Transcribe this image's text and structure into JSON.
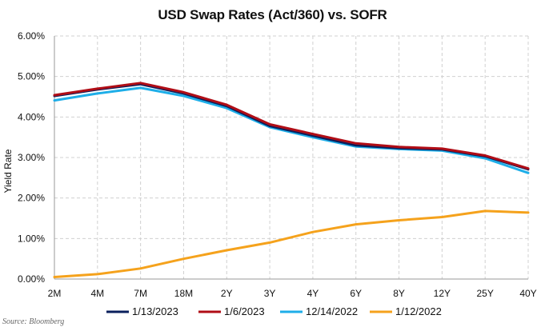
{
  "chart_data": {
    "type": "line",
    "title": "USD Swap Rates (Act/360) vs. SOFR",
    "ylabel": "Yield Rate",
    "xlabel": "",
    "categories": [
      "2M",
      "4M",
      "7M",
      "18M",
      "2Y",
      "3Y",
      "4Y",
      "6Y",
      "8Y",
      "12Y",
      "25Y",
      "40Y"
    ],
    "ylim": [
      0,
      0.06
    ],
    "yticks": [
      "0.00%",
      "1.00%",
      "2.00%",
      "3.00%",
      "4.00%",
      "5.00%",
      "6.00%"
    ],
    "grid": true,
    "legend_position": "bottom",
    "series": [
      {
        "name": "1/13/2023",
        "color": "#0a1f5c",
        "values": [
          4.52,
          4.68,
          4.81,
          4.58,
          4.27,
          3.78,
          3.54,
          3.3,
          3.23,
          3.2,
          3.03,
          2.71
        ]
      },
      {
        "name": "1/6/2023",
        "color": "#b00d16",
        "values": [
          4.54,
          4.7,
          4.84,
          4.61,
          4.3,
          3.82,
          3.58,
          3.35,
          3.26,
          3.22,
          3.05,
          2.73
        ]
      },
      {
        "name": "12/14/2022",
        "color": "#1eaee8",
        "values": [
          4.41,
          4.58,
          4.72,
          4.52,
          4.22,
          3.75,
          3.5,
          3.27,
          3.21,
          3.17,
          2.98,
          2.62
        ]
      },
      {
        "name": "1/12/2022",
        "color": "#f5a21c",
        "values": [
          0.05,
          0.12,
          0.26,
          0.5,
          0.71,
          0.9,
          1.16,
          1.35,
          1.45,
          1.53,
          1.68,
          1.64
        ]
      }
    ]
  },
  "source": "Source: Bloomberg"
}
